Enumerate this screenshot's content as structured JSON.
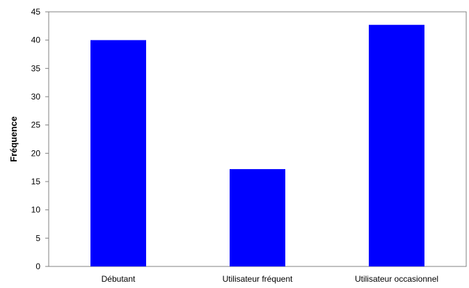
{
  "chart_data": {
    "type": "bar",
    "title": "",
    "xlabel": "",
    "ylabel": "Fréquence",
    "categories": [
      "Débutant",
      "Utilisateur fréquent",
      "Utilisateur occasionnel"
    ],
    "values": [
      40,
      17.2,
      42.7
    ],
    "yticks": [
      0,
      5,
      10,
      15,
      20,
      25,
      30,
      35,
      40,
      45
    ],
    "ytick_labels": [
      "0",
      "5",
      "10",
      "15",
      "20",
      "25",
      "30",
      "35",
      "40",
      "45"
    ],
    "ylim": [
      0,
      45
    ],
    "grid": false,
    "legend": "none",
    "bar_color": "#0000ff",
    "axis_color": "#808080"
  }
}
